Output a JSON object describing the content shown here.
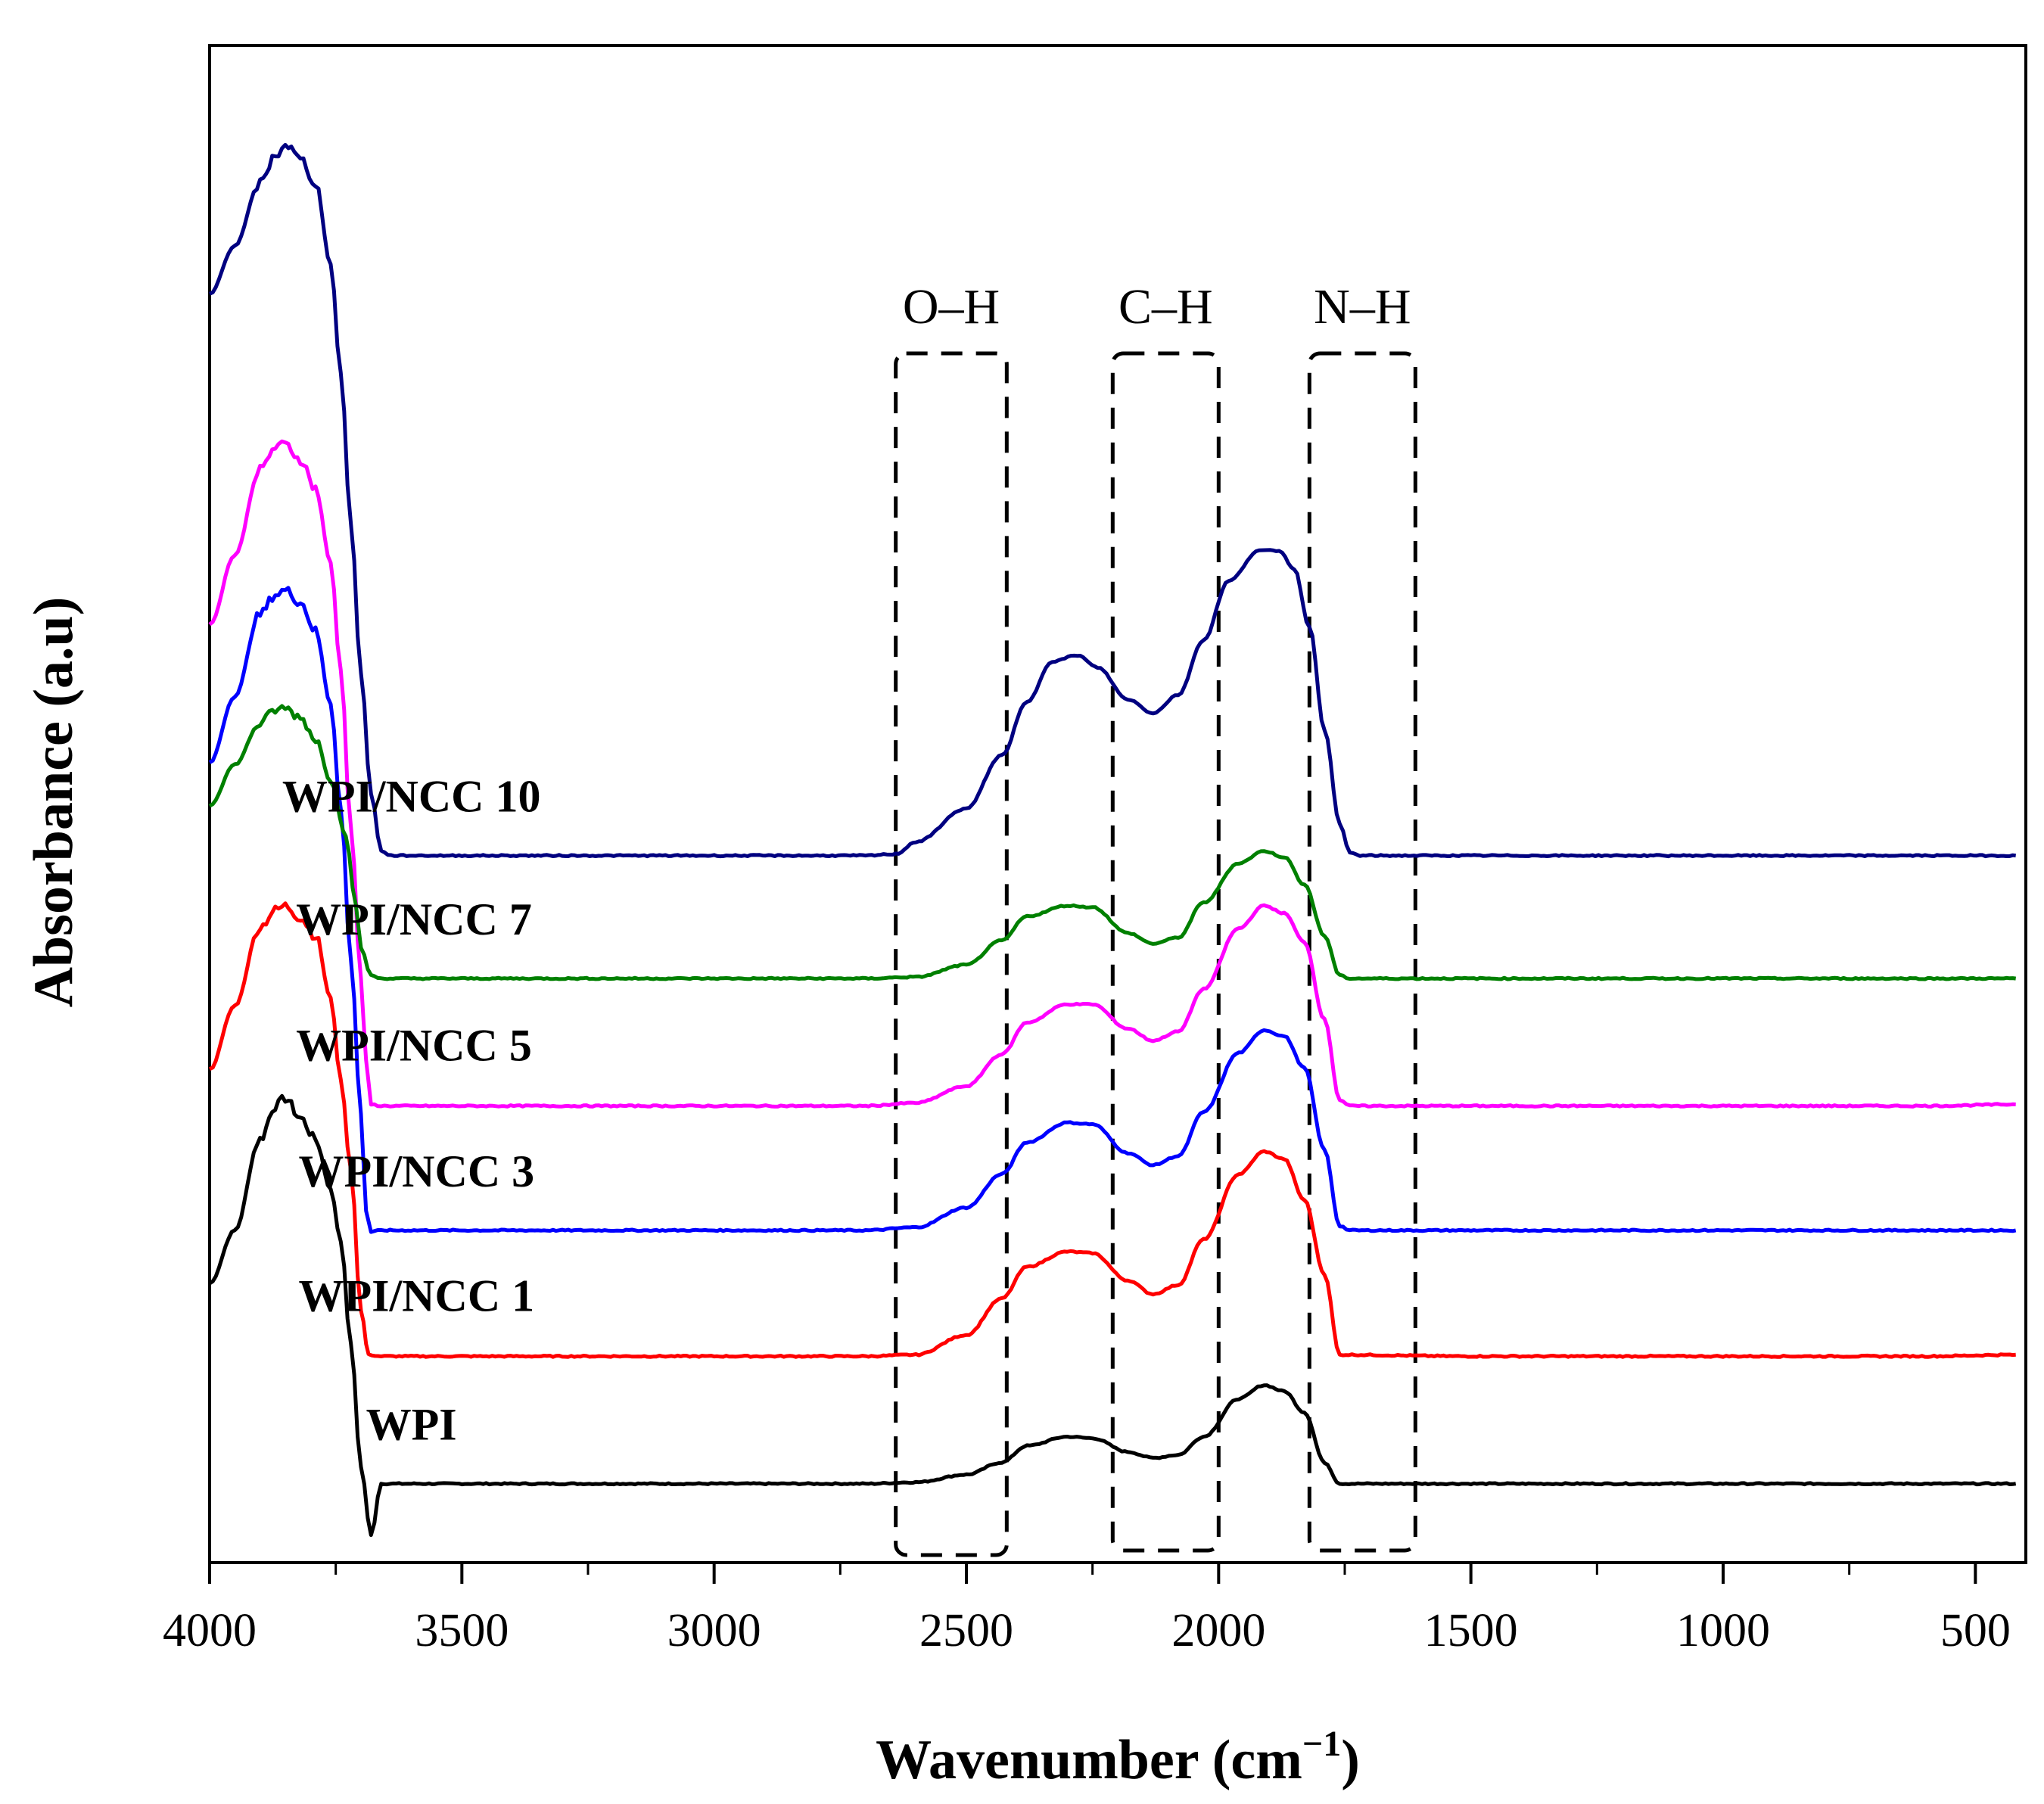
{
  "chart_data": {
    "type": "line",
    "title": "",
    "xlabel": "Wavenumber (cm−1)",
    "xlabel_base": "Wavenumber (cm",
    "xlabel_sup": "−1",
    "xlabel_close": ")",
    "ylabel": "Absorbance (a.u)",
    "xlim": [
      4000,
      400
    ],
    "x_reversed": true,
    "x_ticks": [
      4000,
      3500,
      3000,
      2500,
      2000,
      1500,
      1000,
      500
    ],
    "x_tick_labels": [
      "4000",
      "3500",
      "3000",
      "2500",
      "2000",
      "1500",
      "1000",
      "500"
    ],
    "y_ticks_shown": false,
    "ylim": [
      0,
      1
    ],
    "grid": false,
    "series": [
      {
        "name": "WPI",
        "label": "WPI",
        "color": "#000000",
        "points": [
          [
            4000,
            0.184
          ],
          [
            3950,
            0.219
          ],
          [
            3900,
            0.279
          ],
          [
            3870,
            0.301
          ],
          [
            3850,
            0.306
          ],
          [
            3820,
            0.293
          ],
          [
            3790,
            0.279
          ],
          [
            3760,
            0.246
          ],
          [
            3740,
            0.212
          ],
          [
            3720,
            0.144
          ],
          [
            3700,
            0.063
          ],
          [
            3680,
            0.018
          ],
          [
            3660,
            0.052
          ],
          [
            3500,
            0.052
          ],
          [
            3000,
            0.052
          ],
          [
            2700,
            0.052
          ],
          [
            2600,
            0.053
          ],
          [
            2500,
            0.058
          ],
          [
            2430,
            0.066
          ],
          [
            2380,
            0.077
          ],
          [
            2300,
            0.083
          ],
          [
            2250,
            0.082
          ],
          [
            2180,
            0.073
          ],
          [
            2130,
            0.069
          ],
          [
            2080,
            0.071
          ],
          [
            2030,
            0.083
          ],
          [
            1960,
            0.108
          ],
          [
            1910,
            0.117
          ],
          [
            1870,
            0.113
          ],
          [
            1830,
            0.099
          ],
          [
            1790,
            0.066
          ],
          [
            1760,
            0.052
          ],
          [
            1500,
            0.052
          ],
          [
            1000,
            0.052
          ],
          [
            600,
            0.052
          ],
          [
            420,
            0.052
          ]
        ]
      },
      {
        "name": "WPI/NCC 1",
        "label": "WPI/NCC 1",
        "color": "#ff0000",
        "points": [
          [
            4000,
            0.325
          ],
          [
            3950,
            0.367
          ],
          [
            3900,
            0.419
          ],
          [
            3870,
            0.43
          ],
          [
            3850,
            0.433
          ],
          [
            3820,
            0.425
          ],
          [
            3790,
            0.413
          ],
          [
            3760,
            0.372
          ],
          [
            3740,
            0.318
          ],
          [
            3720,
            0.259
          ],
          [
            3700,
            0.166
          ],
          [
            3685,
            0.137
          ],
          [
            3660,
            0.136
          ],
          [
            3500,
            0.136
          ],
          [
            3000,
            0.136
          ],
          [
            2700,
            0.136
          ],
          [
            2600,
            0.137
          ],
          [
            2500,
            0.15
          ],
          [
            2430,
            0.174
          ],
          [
            2380,
            0.195
          ],
          [
            2300,
            0.205
          ],
          [
            2250,
            0.204
          ],
          [
            2180,
            0.186
          ],
          [
            2130,
            0.177
          ],
          [
            2080,
            0.183
          ],
          [
            2030,
            0.213
          ],
          [
            1960,
            0.256
          ],
          [
            1910,
            0.271
          ],
          [
            1870,
            0.266
          ],
          [
            1830,
            0.239
          ],
          [
            1790,
            0.19
          ],
          [
            1760,
            0.137
          ],
          [
            1500,
            0.136
          ],
          [
            1000,
            0.136
          ],
          [
            600,
            0.136
          ],
          [
            420,
            0.137
          ]
        ]
      },
      {
        "name": "WPI/NCC 3",
        "label": "WPI/NCC 3",
        "color": "#0000ff",
        "points": [
          [
            4000,
            0.527
          ],
          [
            3950,
            0.571
          ],
          [
            3900,
            0.625
          ],
          [
            3870,
            0.638
          ],
          [
            3850,
            0.641
          ],
          [
            3820,
            0.633
          ],
          [
            3790,
            0.614
          ],
          [
            3760,
            0.566
          ],
          [
            3740,
            0.497
          ],
          [
            3720,
            0.397
          ],
          [
            3700,
            0.296
          ],
          [
            3690,
            0.232
          ],
          [
            3680,
            0.218
          ],
          [
            3660,
            0.219
          ],
          [
            3500,
            0.219
          ],
          [
            3000,
            0.219
          ],
          [
            2700,
            0.219
          ],
          [
            2600,
            0.221
          ],
          [
            2500,
            0.234
          ],
          [
            2430,
            0.256
          ],
          [
            2380,
            0.277
          ],
          [
            2300,
            0.29
          ],
          [
            2250,
            0.289
          ],
          [
            2180,
            0.27
          ],
          [
            2130,
            0.262
          ],
          [
            2080,
            0.268
          ],
          [
            2030,
            0.297
          ],
          [
            1960,
            0.336
          ],
          [
            1910,
            0.351
          ],
          [
            1870,
            0.347
          ],
          [
            1830,
            0.326
          ],
          [
            1790,
            0.272
          ],
          [
            1760,
            0.222
          ],
          [
            1740,
            0.219
          ],
          [
            1500,
            0.219
          ],
          [
            1000,
            0.219
          ],
          [
            600,
            0.219
          ],
          [
            420,
            0.219
          ]
        ]
      },
      {
        "name": "WPI/NCC 5",
        "label": "WPI/NCC 5",
        "color": "#ff00ff",
        "points": [
          [
            4000,
            0.618
          ],
          [
            3950,
            0.664
          ],
          [
            3900,
            0.72
          ],
          [
            3870,
            0.735
          ],
          [
            3850,
            0.737
          ],
          [
            3820,
            0.727
          ],
          [
            3790,
            0.708
          ],
          [
            3760,
            0.659
          ],
          [
            3740,
            0.588
          ],
          [
            3720,
            0.485
          ],
          [
            3700,
            0.385
          ],
          [
            3690,
            0.331
          ],
          [
            3680,
            0.302
          ],
          [
            3660,
            0.301
          ],
          [
            3500,
            0.301
          ],
          [
            3000,
            0.301
          ],
          [
            2700,
            0.301
          ],
          [
            2600,
            0.303
          ],
          [
            2500,
            0.314
          ],
          [
            2430,
            0.335
          ],
          [
            2380,
            0.356
          ],
          [
            2300,
            0.368
          ],
          [
            2250,
            0.368
          ],
          [
            2180,
            0.352
          ],
          [
            2130,
            0.344
          ],
          [
            2080,
            0.35
          ],
          [
            2030,
            0.378
          ],
          [
            1960,
            0.418
          ],
          [
            1910,
            0.433
          ],
          [
            1870,
            0.428
          ],
          [
            1830,
            0.409
          ],
          [
            1790,
            0.358
          ],
          [
            1760,
            0.305
          ],
          [
            1740,
            0.301
          ],
          [
            1500,
            0.301
          ],
          [
            1000,
            0.301
          ],
          [
            600,
            0.301
          ],
          [
            420,
            0.302
          ]
        ]
      },
      {
        "name": "WPI/NCC 7",
        "label": "WPI/NCC 7",
        "color": "#008000",
        "points": [
          [
            4000,
            0.499
          ],
          [
            3950,
            0.526
          ],
          [
            3900,
            0.553
          ],
          [
            3870,
            0.562
          ],
          [
            3850,
            0.563
          ],
          [
            3820,
            0.557
          ],
          [
            3790,
            0.543
          ],
          [
            3760,
            0.515
          ],
          [
            3730,
            0.479
          ],
          [
            3710,
            0.433
          ],
          [
            3700,
            0.405
          ],
          [
            3680,
            0.387
          ],
          [
            3660,
            0.385
          ],
          [
            3500,
            0.385
          ],
          [
            3000,
            0.385
          ],
          [
            2700,
            0.385
          ],
          [
            2600,
            0.386
          ],
          [
            2500,
            0.394
          ],
          [
            2430,
            0.41
          ],
          [
            2380,
            0.426
          ],
          [
            2300,
            0.433
          ],
          [
            2250,
            0.432
          ],
          [
            2180,
            0.415
          ],
          [
            2130,
            0.408
          ],
          [
            2080,
            0.412
          ],
          [
            2030,
            0.435
          ],
          [
            1960,
            0.461
          ],
          [
            1910,
            0.469
          ],
          [
            1870,
            0.465
          ],
          [
            1830,
            0.447
          ],
          [
            1790,
            0.413
          ],
          [
            1760,
            0.387
          ],
          [
            1740,
            0.385
          ],
          [
            1500,
            0.385
          ],
          [
            1000,
            0.385
          ],
          [
            600,
            0.385
          ],
          [
            420,
            0.385
          ]
        ]
      },
      {
        "name": "WPI/NCC 10",
        "label": "WPI/NCC 10",
        "color": "#000080",
        "points": [
          [
            4000,
            0.836
          ],
          [
            3950,
            0.868
          ],
          [
            3900,
            0.909
          ],
          [
            3870,
            0.927
          ],
          [
            3850,
            0.935
          ],
          [
            3820,
            0.925
          ],
          [
            3790,
            0.909
          ],
          [
            3760,
            0.856
          ],
          [
            3740,
            0.784
          ],
          [
            3720,
            0.685
          ],
          [
            3700,
            0.586
          ],
          [
            3680,
            0.507
          ],
          [
            3660,
            0.469
          ],
          [
            3640,
            0.466
          ],
          [
            3500,
            0.466
          ],
          [
            3000,
            0.466
          ],
          [
            2700,
            0.466
          ],
          [
            2640,
            0.467
          ],
          [
            2600,
            0.475
          ],
          [
            2500,
            0.497
          ],
          [
            2430,
            0.532
          ],
          [
            2380,
            0.567
          ],
          [
            2330,
            0.594
          ],
          [
            2280,
            0.598
          ],
          [
            2240,
            0.59
          ],
          [
            2180,
            0.569
          ],
          [
            2130,
            0.56
          ],
          [
            2080,
            0.572
          ],
          [
            2030,
            0.608
          ],
          [
            1980,
            0.647
          ],
          [
            1920,
            0.667
          ],
          [
            1880,
            0.667
          ],
          [
            1850,
            0.655
          ],
          [
            1820,
            0.617
          ],
          [
            1790,
            0.549
          ],
          [
            1760,
            0.487
          ],
          [
            1740,
            0.468
          ],
          [
            1720,
            0.466
          ],
          [
            1500,
            0.466
          ],
          [
            1000,
            0.466
          ],
          [
            600,
            0.466
          ],
          [
            420,
            0.466
          ]
        ]
      }
    ],
    "series_label_x": [
      3600,
      3590,
      3590,
      3595,
      3595,
      3600
    ],
    "annotations": [
      {
        "label": "O–H",
        "x_range": [
          2640,
          2420
        ],
        "y_range": [
          0.005,
          0.797
        ]
      },
      {
        "label": "C–H",
        "x_range": [
          2210,
          2000
        ],
        "y_range": [
          0.008,
          0.797
        ]
      },
      {
        "label": "N–H",
        "x_range": [
          1820,
          1610
        ],
        "y_range": [
          0.008,
          0.797
        ]
      }
    ]
  }
}
